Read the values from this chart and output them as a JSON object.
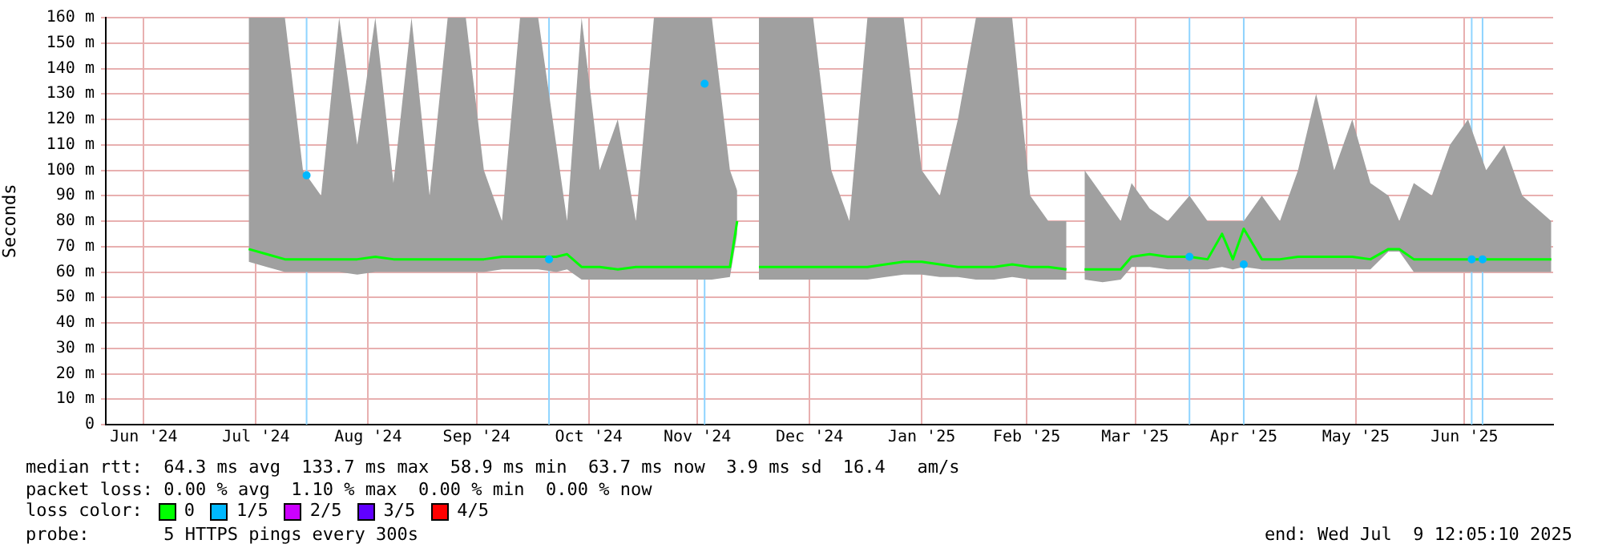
{
  "chart_data": {
    "type": "line",
    "ylabel": "Seconds",
    "xlim": [
      "2024-06-04T12:05",
      "2025-07-09T12:05"
    ],
    "xticks": [
      {
        "value": "2024-06-15",
        "label": "Jun '24"
      },
      {
        "value": "2024-07-16",
        "label": "Jul '24"
      },
      {
        "value": "2024-08-16",
        "label": "Aug '24"
      },
      {
        "value": "2024-09-15",
        "label": "Sep '24"
      },
      {
        "value": "2024-10-16",
        "label": "Oct '24"
      },
      {
        "value": "2024-11-15",
        "label": "Nov '24"
      },
      {
        "value": "2024-12-16",
        "label": "Dec '24"
      },
      {
        "value": "2025-01-16",
        "label": "Jan '25"
      },
      {
        "value": "2025-02-14",
        "label": "Feb '25"
      },
      {
        "value": "2025-03-16",
        "label": "Mar '25"
      },
      {
        "value": "2025-04-15",
        "label": "Apr '25"
      },
      {
        "value": "2025-05-16",
        "label": "May '25"
      },
      {
        "value": "2025-06-15",
        "label": "Jun '25"
      }
    ],
    "ylim": [
      0,
      160
    ],
    "yticks": [
      0,
      {
        "value": 10,
        "label": "10 m"
      },
      {
        "value": 20,
        "label": "20 m"
      },
      {
        "value": 30,
        "label": "30 m"
      },
      {
        "value": 40,
        "label": "40 m"
      },
      {
        "value": 50,
        "label": "50 m"
      },
      {
        "value": 60,
        "label": "60 m"
      },
      {
        "value": 70,
        "label": "70 m"
      },
      {
        "value": 80,
        "label": "80 m"
      },
      {
        "value": 90,
        "label": "90 m"
      },
      {
        "value": 100,
        "label": "100 m"
      },
      {
        "value": 110,
        "label": "110 m"
      },
      {
        "value": 120,
        "label": "120 m"
      },
      {
        "value": 130,
        "label": "130 m"
      },
      {
        "value": 140,
        "label": "140 m"
      },
      {
        "value": 150,
        "label": "150 m"
      },
      {
        "value": 160,
        "label": "160 m"
      }
    ],
    "grid": true,
    "legend": "bottom",
    "legend_title": "loss color:",
    "series": [
      {
        "name": "0",
        "color": "#00ff00",
        "x": [
          "2024-07-14",
          "2024-07-19",
          "2024-07-24",
          "2024-07-29",
          "2024-08-03",
          "2024-08-08",
          "2024-08-13",
          "2024-08-18",
          "2024-08-23",
          "2024-08-28",
          "2024-09-02",
          "2024-09-07",
          "2024-09-12",
          "2024-09-17",
          "2024-09-22",
          "2024-09-27",
          "2024-10-02",
          "2024-10-07",
          "2024-10-10",
          "2024-10-14",
          "2024-10-19",
          "2024-10-24",
          "2024-10-29",
          "2024-11-03",
          "2024-11-08",
          "2024-11-13",
          "2024-11-19",
          "2024-11-24",
          "2024-11-26",
          "2024-11-29",
          "2024-12-02",
          "2024-12-07",
          "2024-12-12",
          "2024-12-17",
          "2024-12-22",
          "2024-12-27",
          "2025-01-01",
          "2025-01-06",
          "2025-01-11",
          "2025-01-16",
          "2025-01-21",
          "2025-01-26",
          "2025-01-31",
          "2025-02-05",
          "2025-02-10",
          "2025-02-15",
          "2025-02-20",
          "2025-02-25",
          "2025-02-28",
          "2025-03-02",
          "2025-03-07",
          "2025-03-12",
          "2025-03-15",
          "2025-03-20",
          "2025-03-25",
          "2025-03-31",
          "2025-04-05",
          "2025-04-09",
          "2025-04-12",
          "2025-04-15",
          "2025-04-20",
          "2025-04-25",
          "2025-04-30",
          "2025-05-05",
          "2025-05-10",
          "2025-05-15",
          "2025-05-20",
          "2025-05-25",
          "2025-05-28",
          "2025-06-01",
          "2025-06-06",
          "2025-06-11",
          "2025-06-16",
          "2025-06-21",
          "2025-06-26",
          "2025-07-01",
          "2025-07-09"
        ],
        "values": [
          69,
          67,
          65,
          65,
          65,
          65,
          65,
          66,
          65,
          65,
          65,
          65,
          65,
          65,
          66,
          66,
          66,
          66,
          67,
          62,
          62,
          61,
          62,
          62,
          62,
          62,
          62,
          62,
          80,
          null,
          62,
          62,
          62,
          62,
          62,
          62,
          62,
          63,
          64,
          64,
          63,
          62,
          62,
          62,
          63,
          62,
          62,
          61,
          null,
          61,
          61,
          61,
          66,
          67,
          66,
          66,
          65,
          75,
          65,
          77,
          65,
          65,
          66,
          66,
          66,
          66,
          65,
          69,
          69,
          65,
          65,
          65,
          65,
          65,
          65,
          65,
          65
        ],
        "lower": [
          64,
          62,
          60,
          60,
          60,
          60,
          59,
          60,
          60,
          60,
          60,
          60,
          60,
          60,
          61,
          61,
          61,
          60,
          61,
          57,
          57,
          57,
          57,
          57,
          57,
          57,
          57,
          58,
          75,
          null,
          57,
          57,
          57,
          57,
          57,
          57,
          57,
          58,
          59,
          59,
          58,
          58,
          57,
          57,
          58,
          57,
          57,
          57,
          null,
          57,
          56,
          57,
          62,
          62,
          61,
          61,
          61,
          62,
          61,
          62,
          61,
          61,
          61,
          61,
          61,
          61,
          61,
          68,
          68,
          60,
          60,
          60,
          60,
          60,
          60,
          60,
          60
        ],
        "upper": [
          160,
          160,
          160,
          100,
          90,
          160,
          110,
          160,
          95,
          160,
          90,
          160,
          160,
          100,
          80,
          160,
          160,
          110,
          80,
          160,
          100,
          120,
          80,
          160,
          160,
          160,
          160,
          100,
          92,
          null,
          160,
          160,
          160,
          160,
          100,
          80,
          160,
          160,
          160,
          100,
          90,
          120,
          160,
          160,
          160,
          90,
          80,
          80,
          null,
          100,
          90,
          80,
          95,
          85,
          80,
          90,
          80,
          80,
          80,
          80,
          90,
          80,
          100,
          130,
          100,
          120,
          95,
          90,
          80,
          95,
          90,
          110,
          120,
          100,
          110,
          90,
          80
        ]
      },
      {
        "name": "1/5",
        "color": "#00b8ff",
        "type": "scatter",
        "x": [
          "2024-07-30",
          "2024-10-05",
          "2024-11-17",
          "2025-03-31",
          "2025-04-15",
          "2025-06-17",
          "2025-06-20"
        ],
        "values": [
          98,
          65,
          134,
          66,
          63,
          65,
          65
        ]
      },
      {
        "name": "2/5",
        "color": "#cc00ff",
        "type": "scatter"
      },
      {
        "name": "3/5",
        "color": "#6000ff",
        "type": "scatter"
      },
      {
        "name": "4/5",
        "color": "#ff0000",
        "type": "scatter"
      }
    ],
    "ref_lines": [
      {
        "axis": "x",
        "value": "2024-07-30",
        "color": "#8fd4ff"
      },
      {
        "axis": "x",
        "value": "2024-10-05",
        "color": "#8fd4ff"
      },
      {
        "axis": "x",
        "value": "2024-11-17",
        "color": "#8fd4ff"
      },
      {
        "axis": "x",
        "value": "2025-03-31",
        "color": "#8fd4ff"
      },
      {
        "axis": "x",
        "value": "2025-04-15",
        "color": "#8fd4ff"
      },
      {
        "axis": "x",
        "value": "2025-06-17",
        "color": "#8fd4ff"
      },
      {
        "axis": "x",
        "value": "2025-06-20",
        "color": "#8fd4ff"
      }
    ],
    "annotations": [
      "median rtt:  64.3 ms avg  133.7 ms max  58.9 ms min  63.7 ms now  3.9 ms sd  16.4   am/s",
      "packet loss: 0.00 % avg  1.10 % max  0.00 % min  0.00 % now",
      "probe:       5 HTTPS pings every 300s",
      "end: Wed Jul  9 12:05:10 2025"
    ]
  }
}
